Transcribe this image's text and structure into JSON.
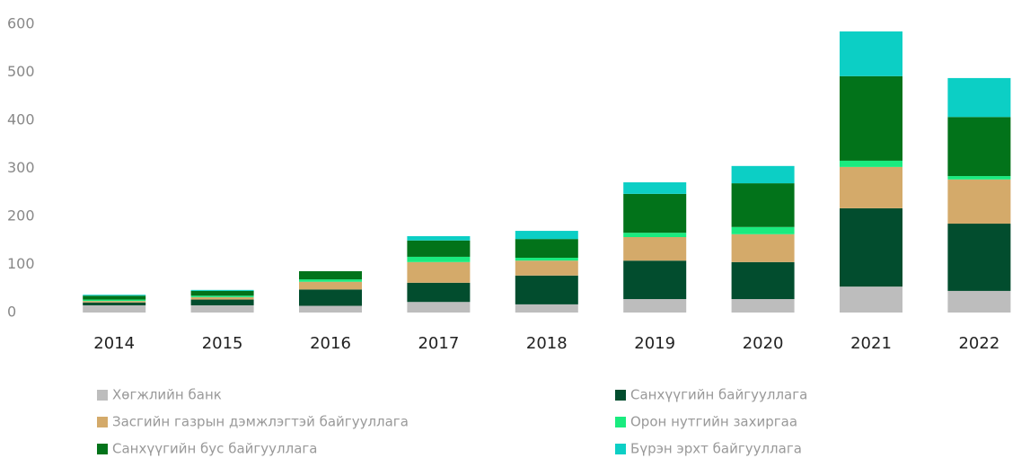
{
  "chart_data": {
    "type": "bar",
    "stacked": true,
    "categories": [
      "2014",
      "2015",
      "2016",
      "2017",
      "2018",
      "2019",
      "2020",
      "2021",
      "2022"
    ],
    "series": [
      {
        "name": "Хөгжлийн банк",
        "color": "#bdbdbd",
        "values": [
          15,
          15,
          14,
          22,
          17,
          28,
          28,
          54,
          45
        ]
      },
      {
        "name": "Санхүүгийн байгууллага",
        "color": "#024d2e",
        "values": [
          6,
          12,
          34,
          40,
          60,
          80,
          77,
          163,
          140
        ]
      },
      {
        "name": "Засгийн газрын дэмжлэгтэй байгууллага",
        "color": "#d4aa6a",
        "values": [
          3,
          5,
          16,
          43,
          31,
          49,
          58,
          86,
          92
        ]
      },
      {
        "name": "Орон нутгийн захиргаа",
        "color": "#1aeb7f",
        "values": [
          3,
          3,
          5,
          11,
          6,
          9,
          15,
          13,
          7
        ]
      },
      {
        "name": "Санхүүгийн бус байгууллага",
        "color": "#02731a",
        "values": [
          8,
          10,
          17,
          34,
          39,
          81,
          91,
          176,
          123
        ]
      },
      {
        "name": "Бүрэн эрхт байгууллага",
        "color": "#0ccfc5",
        "values": [
          2,
          2,
          0,
          9,
          17,
          24,
          36,
          93,
          81
        ]
      }
    ],
    "ylim": [
      0,
      600
    ],
    "yticks": [
      0,
      100,
      200,
      300,
      400,
      500,
      600
    ],
    "grid": false,
    "legend": "bottom"
  }
}
